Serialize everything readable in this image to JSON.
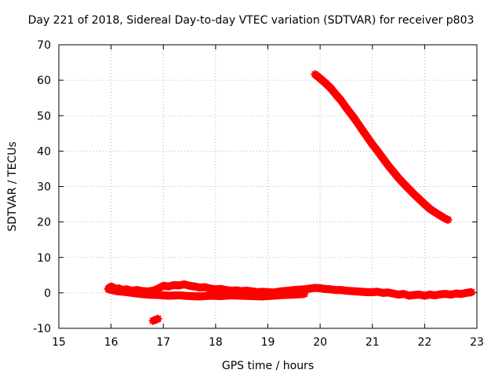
{
  "chart_data": {
    "type": "scatter",
    "title": "Day 221 of 2018, Sidereal Day-to-day VTEC variation (SDTVAR) for receiver p803",
    "xlabel": "GPS time / hours",
    "ylabel": "SDTVAR / TECUs",
    "xlim": [
      15,
      23
    ],
    "ylim": [
      -10,
      70
    ],
    "xticks": [
      15,
      16,
      17,
      18,
      19,
      20,
      21,
      22,
      23
    ],
    "yticks": [
      -10,
      0,
      10,
      20,
      30,
      40,
      50,
      60,
      70
    ],
    "grid": true,
    "marker_color": "#ff0000",
    "series": [
      {
        "x": [
          15.95,
          16.0,
          16.05,
          16.1,
          16.15,
          16.2,
          16.3,
          16.4,
          16.5,
          16.6,
          16.7,
          16.8,
          16.9,
          17.0,
          17.1,
          17.2,
          17.3,
          17.4,
          17.5,
          17.6,
          17.7,
          17.8,
          17.9,
          18.0,
          18.1,
          18.2,
          18.3,
          18.4,
          18.5,
          18.6,
          18.7,
          18.8,
          18.9,
          19.0,
          19.1,
          19.2,
          19.3,
          19.4,
          19.5,
          19.6,
          19.7,
          19.8,
          19.9,
          20.0,
          20.1,
          20.2,
          20.3,
          20.4,
          20.5,
          20.6,
          20.7,
          20.8,
          20.9,
          21.0,
          21.1,
          21.2,
          21.3,
          21.4,
          21.5,
          21.6,
          21.7,
          21.8,
          21.9,
          22.0,
          22.1,
          22.2,
          22.3,
          22.4,
          22.5,
          22.6,
          22.7,
          22.8,
          22.9
        ],
        "y": [
          1.2,
          1.8,
          1.5,
          1.0,
          1.3,
          0.8,
          1.0,
          0.6,
          0.8,
          0.5,
          0.4,
          0.6,
          1.2,
          2.0,
          1.8,
          2.2,
          2.1,
          2.4,
          2.0,
          1.8,
          1.5,
          1.6,
          1.2,
          1.0,
          1.1,
          0.8,
          0.6,
          0.7,
          0.5,
          0.6,
          0.4,
          0.2,
          0.3,
          0.2,
          0.1,
          0.3,
          0.5,
          0.6,
          0.8,
          0.9,
          1.0,
          1.2,
          1.4,
          1.3,
          1.1,
          1.0,
          0.8,
          0.8,
          0.6,
          0.5,
          0.4,
          0.3,
          0.2,
          0.2,
          0.3,
          0.0,
          0.1,
          -0.2,
          -0.5,
          -0.3,
          -0.8,
          -0.6,
          -0.5,
          -0.8,
          -0.5,
          -0.7,
          -0.4,
          -0.3,
          -0.5,
          -0.2,
          -0.3,
          0.0,
          0.2
        ]
      },
      {
        "x": [
          15.95,
          16.1,
          16.3,
          16.5,
          16.7,
          16.9,
          17.1,
          17.3,
          17.5,
          17.7,
          17.9,
          18.1,
          18.3,
          18.5,
          18.7,
          18.9,
          19.1,
          19.3,
          19.5,
          19.7
        ],
        "y": [
          1.0,
          0.5,
          0.2,
          -0.2,
          -0.5,
          -0.6,
          -0.8,
          -0.7,
          -0.9,
          -1.0,
          -0.8,
          -0.9,
          -0.7,
          -0.8,
          -0.9,
          -1.0,
          -0.8,
          -0.6,
          -0.5,
          -0.3
        ]
      },
      {
        "x": [
          16.8,
          16.85,
          16.9
        ],
        "y": [
          -7.9,
          -7.6,
          -7.3
        ]
      },
      {
        "x": [
          19.9,
          20.0,
          20.1,
          20.2,
          20.3,
          20.4,
          20.5,
          20.6,
          20.7,
          20.8,
          20.9,
          21.0,
          21.1,
          21.2,
          21.3,
          21.4,
          21.5,
          21.6,
          21.7,
          21.8,
          21.9,
          22.0,
          22.1,
          22.2,
          22.3,
          22.4,
          22.45
        ],
        "y": [
          61.7,
          60.5,
          59.2,
          57.8,
          56.0,
          54.3,
          52.2,
          50.3,
          48.3,
          46.1,
          44.0,
          41.9,
          40.0,
          38.0,
          36.0,
          34.2,
          32.4,
          30.8,
          29.3,
          27.8,
          26.4,
          25.0,
          23.7,
          22.7,
          21.8,
          20.9,
          20.6
        ]
      }
    ]
  }
}
